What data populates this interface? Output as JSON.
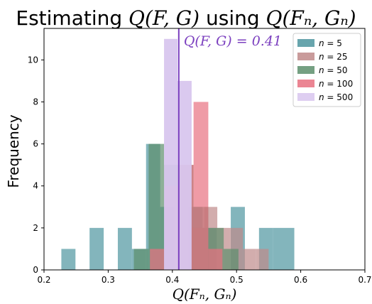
{
  "chart_data": {
    "type": "bar",
    "title": {
      "prefix": "Estimating ",
      "math1": "Q(F, G)",
      "middle": " using ",
      "math2": "Q(Fₙ, Gₙ)"
    },
    "xlabel": "Q(Fₙ, Gₙ)",
    "ylabel": "Frequency",
    "xlim": [
      0.2,
      0.7
    ],
    "ylim": [
      0,
      11.5
    ],
    "xticks": [
      0.2,
      0.3,
      0.4,
      0.5,
      0.6,
      0.7
    ],
    "xtick_labels": [
      "0.2",
      "0.3",
      "0.4",
      "0.5",
      "0.6",
      "0.7"
    ],
    "yticks": [
      0,
      2,
      4,
      6,
      8,
      10
    ],
    "ytick_labels": [
      "0",
      "2",
      "4",
      "6",
      "8",
      "10"
    ],
    "legend_position": "top-right",
    "annotation": {
      "text": "Q(F, G) = 0.41",
      "x": 0.41,
      "color": "#7b3fbf"
    },
    "series": [
      {
        "name": "n = 5",
        "legend_n": "n",
        "legend_value": " = 5",
        "color": "#4e959f",
        "bins": [
          {
            "x0": 0.227,
            "x1": 0.249,
            "count": 1
          },
          {
            "x0": 0.271,
            "x1": 0.293,
            "count": 2
          },
          {
            "x0": 0.315,
            "x1": 0.337,
            "count": 2
          },
          {
            "x0": 0.337,
            "x1": 0.359,
            "count": 1
          },
          {
            "x0": 0.359,
            "x1": 0.381,
            "count": 6
          },
          {
            "x0": 0.381,
            "x1": 0.403,
            "count": 3
          },
          {
            "x0": 0.425,
            "x1": 0.447,
            "count": 3
          },
          {
            "x0": 0.447,
            "x1": 0.469,
            "count": 2
          },
          {
            "x0": 0.491,
            "x1": 0.513,
            "count": 3
          },
          {
            "x0": 0.535,
            "x1": 0.557,
            "count": 2
          },
          {
            "x0": 0.557,
            "x1": 0.59,
            "count": 2
          }
        ]
      },
      {
        "name": "n = 25",
        "legend_n": "n",
        "legend_value": " = 25",
        "color": "#bf8a8a",
        "bins": [
          {
            "x0": 0.43,
            "x1": 0.45,
            "count": 2
          },
          {
            "x0": 0.45,
            "x1": 0.47,
            "count": 3
          },
          {
            "x0": 0.47,
            "x1": 0.49,
            "count": 2
          },
          {
            "x0": 0.49,
            "x1": 0.51,
            "count": 2
          },
          {
            "x0": 0.51,
            "x1": 0.53,
            "count": 1
          },
          {
            "x0": 0.53,
            "x1": 0.55,
            "count": 1
          }
        ]
      },
      {
        "name": "n = 50",
        "legend_n": "n",
        "legend_value": " = 50",
        "color": "#5d8f6c",
        "bins": [
          {
            "x0": 0.34,
            "x1": 0.363,
            "count": 1
          },
          {
            "x0": 0.363,
            "x1": 0.387,
            "count": 6
          },
          {
            "x0": 0.387,
            "x1": 0.41,
            "count": 5
          },
          {
            "x0": 0.41,
            "x1": 0.433,
            "count": 5
          },
          {
            "x0": 0.433,
            "x1": 0.456,
            "count": 3
          },
          {
            "x0": 0.456,
            "x1": 0.48,
            "count": 2
          },
          {
            "x0": 0.48,
            "x1": 0.503,
            "count": 1
          }
        ]
      },
      {
        "name": "n = 100",
        "legend_n": "n",
        "legend_value": " = 100",
        "color": "#e87080",
        "bins": [
          {
            "x0": 0.365,
            "x1": 0.388,
            "count": 1
          },
          {
            "x0": 0.388,
            "x1": 0.411,
            "count": 4
          },
          {
            "x0": 0.411,
            "x1": 0.433,
            "count": 5
          },
          {
            "x0": 0.433,
            "x1": 0.456,
            "count": 8
          },
          {
            "x0": 0.456,
            "x1": 0.478,
            "count": 1
          }
        ]
      },
      {
        "name": "n = 500",
        "legend_n": "n",
        "legend_value": " = 500",
        "color": "#d8c6ee",
        "bins": [
          {
            "x0": 0.387,
            "x1": 0.408,
            "count": 11
          },
          {
            "x0": 0.408,
            "x1": 0.43,
            "count": 9
          }
        ]
      }
    ]
  }
}
